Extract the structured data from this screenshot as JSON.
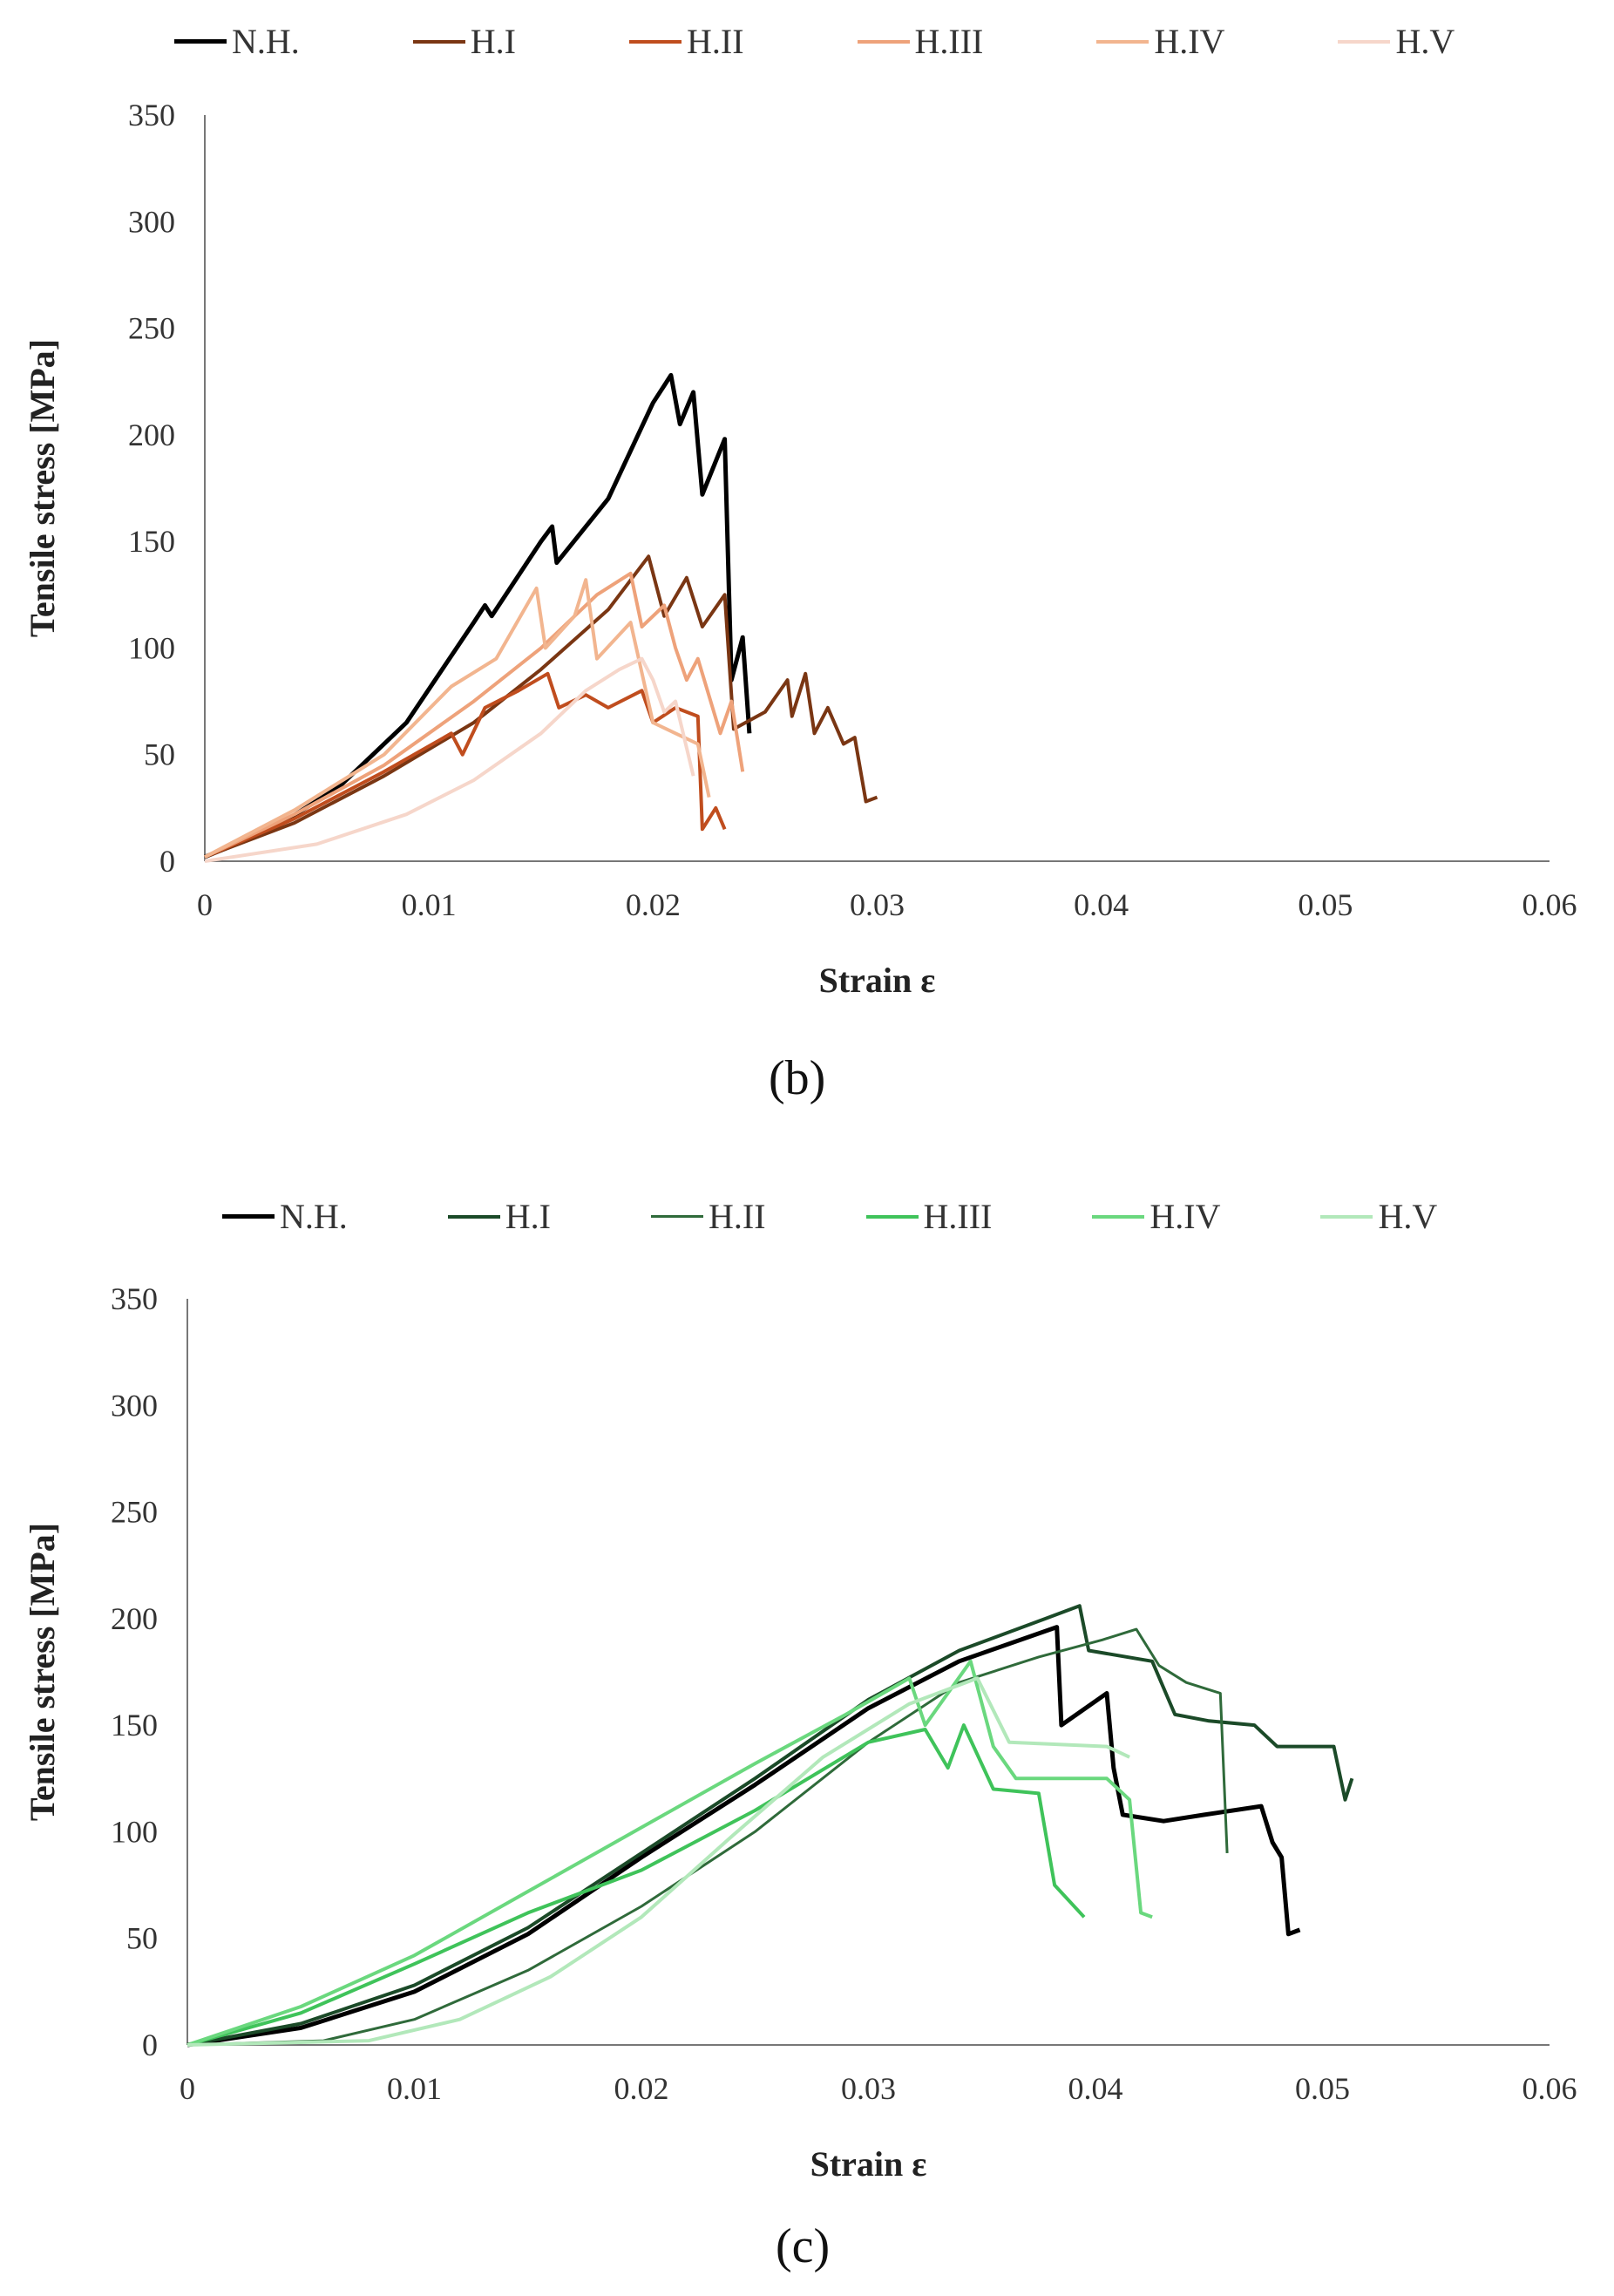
{
  "chart_data": [
    {
      "type": "line",
      "panel_label": "(b)",
      "xlabel": "Strain ε",
      "ylabel": "Tensile stress [MPa]",
      "xlim": [
        0,
        0.06
      ],
      "ylim": [
        0,
        350
      ],
      "x_ticks": [
        "0",
        "0.01",
        "0.02",
        "0.03",
        "0.04",
        "0.05",
        "0.06"
      ],
      "y_ticks": [
        "0",
        "50",
        "100",
        "150",
        "200",
        "250",
        "300",
        "350"
      ],
      "legend_position": "top",
      "series": [
        {
          "name": "N.H.",
          "color": "#000000",
          "width": 5,
          "points": [
            [
              0,
              2
            ],
            [
              0.003,
              15
            ],
            [
              0.006,
              35
            ],
            [
              0.009,
              65
            ],
            [
              0.012,
              112
            ],
            [
              0.0125,
              120
            ],
            [
              0.0128,
              115
            ],
            [
              0.015,
              150
            ],
            [
              0.0155,
              157
            ],
            [
              0.0157,
              140
            ],
            [
              0.018,
              170
            ],
            [
              0.02,
              215
            ],
            [
              0.0208,
              228
            ],
            [
              0.0212,
              205
            ],
            [
              0.0218,
              220
            ],
            [
              0.0222,
              172
            ],
            [
              0.0232,
              198
            ],
            [
              0.0235,
              85
            ],
            [
              0.024,
              105
            ],
            [
              0.0243,
              60
            ]
          ]
        },
        {
          "name": "H.I",
          "color": "#7a3613",
          "width": 4,
          "points": [
            [
              0,
              2
            ],
            [
              0.004,
              18
            ],
            [
              0.008,
              40
            ],
            [
              0.012,
              65
            ],
            [
              0.015,
              90
            ],
            [
              0.018,
              118
            ],
            [
              0.0198,
              143
            ],
            [
              0.0205,
              115
            ],
            [
              0.0215,
              133
            ],
            [
              0.0222,
              110
            ],
            [
              0.0232,
              125
            ],
            [
              0.0236,
              62
            ],
            [
              0.025,
              70
            ],
            [
              0.026,
              85
            ],
            [
              0.0262,
              68
            ],
            [
              0.0268,
              88
            ],
            [
              0.0272,
              60
            ],
            [
              0.0278,
              72
            ],
            [
              0.0285,
              55
            ],
            [
              0.029,
              58
            ],
            [
              0.0295,
              28
            ],
            [
              0.03,
              30
            ]
          ]
        },
        {
          "name": "H.II",
          "color": "#c04d1e",
          "width": 4,
          "points": [
            [
              0,
              2
            ],
            [
              0.004,
              20
            ],
            [
              0.008,
              42
            ],
            [
              0.011,
              60
            ],
            [
              0.0115,
              50
            ],
            [
              0.0125,
              72
            ],
            [
              0.014,
              80
            ],
            [
              0.0153,
              88
            ],
            [
              0.0158,
              72
            ],
            [
              0.017,
              78
            ],
            [
              0.018,
              72
            ],
            [
              0.0195,
              80
            ],
            [
              0.02,
              65
            ],
            [
              0.021,
              72
            ],
            [
              0.022,
              68
            ],
            [
              0.0222,
              15
            ],
            [
              0.0228,
              25
            ],
            [
              0.0232,
              15
            ]
          ]
        },
        {
          "name": "H.III",
          "color": "#eea27a",
          "width": 4,
          "points": [
            [
              0,
              2
            ],
            [
              0.004,
              22
            ],
            [
              0.008,
              45
            ],
            [
              0.012,
              75
            ],
            [
              0.015,
              100
            ],
            [
              0.0175,
              125
            ],
            [
              0.019,
              135
            ],
            [
              0.0195,
              110
            ],
            [
              0.0205,
              120
            ],
            [
              0.021,
              100
            ],
            [
              0.0215,
              85
            ],
            [
              0.022,
              95
            ],
            [
              0.023,
              60
            ],
            [
              0.0235,
              75
            ],
            [
              0.024,
              42
            ]
          ]
        },
        {
          "name": "H.IV",
          "color": "#f2b58f",
          "width": 4,
          "points": [
            [
              0,
              2
            ],
            [
              0.004,
              24
            ],
            [
              0.008,
              50
            ],
            [
              0.011,
              82
            ],
            [
              0.013,
              95
            ],
            [
              0.0148,
              128
            ],
            [
              0.0152,
              100
            ],
            [
              0.0165,
              115
            ],
            [
              0.017,
              132
            ],
            [
              0.0175,
              95
            ],
            [
              0.019,
              112
            ],
            [
              0.02,
              65
            ],
            [
              0.021,
              60
            ],
            [
              0.022,
              55
            ],
            [
              0.0225,
              30
            ]
          ]
        },
        {
          "name": "H.V",
          "color": "#f6d6ca",
          "width": 4,
          "points": [
            [
              0,
              0
            ],
            [
              0.005,
              8
            ],
            [
              0.009,
              22
            ],
            [
              0.012,
              38
            ],
            [
              0.015,
              60
            ],
            [
              0.017,
              80
            ],
            [
              0.0185,
              90
            ],
            [
              0.0195,
              95
            ],
            [
              0.02,
              85
            ],
            [
              0.0205,
              70
            ],
            [
              0.021,
              75
            ],
            [
              0.0218,
              40
            ]
          ]
        }
      ]
    },
    {
      "type": "line",
      "panel_label": "(c)",
      "xlabel": "Strain ε",
      "ylabel": "Tensile stress [MPa]",
      "xlim": [
        0,
        0.06
      ],
      "ylim": [
        0,
        350
      ],
      "x_ticks": [
        "0",
        "0.01",
        "0.02",
        "0.03",
        "0.04",
        "0.05",
        "0.06"
      ],
      "y_ticks": [
        "0",
        "50",
        "100",
        "150",
        "200",
        "250",
        "300",
        "350"
      ],
      "legend_position": "top",
      "series": [
        {
          "name": "N.H.",
          "color": "#000000",
          "width": 5,
          "points": [
            [
              0,
              0
            ],
            [
              0.005,
              8
            ],
            [
              0.01,
              25
            ],
            [
              0.015,
              52
            ],
            [
              0.02,
              88
            ],
            [
              0.025,
              122
            ],
            [
              0.03,
              158
            ],
            [
              0.034,
              180
            ],
            [
              0.0383,
              196
            ],
            [
              0.0385,
              150
            ],
            [
              0.0405,
              165
            ],
            [
              0.0408,
              130
            ],
            [
              0.0412,
              108
            ],
            [
              0.043,
              105
            ],
            [
              0.0448,
              108
            ],
            [
              0.0473,
              112
            ],
            [
              0.0478,
              95
            ],
            [
              0.0482,
              88
            ],
            [
              0.0485,
              52
            ],
            [
              0.049,
              54
            ]
          ]
        },
        {
          "name": "H.I",
          "color": "#1b4a28",
          "width": 4,
          "points": [
            [
              0,
              0
            ],
            [
              0.005,
              10
            ],
            [
              0.01,
              28
            ],
            [
              0.015,
              55
            ],
            [
              0.02,
              90
            ],
            [
              0.025,
              125
            ],
            [
              0.03,
              162
            ],
            [
              0.034,
              185
            ],
            [
              0.0378,
              200
            ],
            [
              0.0393,
              206
            ],
            [
              0.0397,
              185
            ],
            [
              0.0425,
              180
            ],
            [
              0.0435,
              155
            ],
            [
              0.045,
              152
            ],
            [
              0.047,
              150
            ],
            [
              0.048,
              140
            ],
            [
              0.0505,
              140
            ],
            [
              0.051,
              115
            ],
            [
              0.0513,
              125
            ]
          ]
        },
        {
          "name": "H.II",
          "color": "#2f6a3a",
          "width": 3,
          "points": [
            [
              0,
              0
            ],
            [
              0.006,
              2
            ],
            [
              0.01,
              12
            ],
            [
              0.015,
              35
            ],
            [
              0.02,
              65
            ],
            [
              0.025,
              100
            ],
            [
              0.03,
              142
            ],
            [
              0.034,
              170
            ],
            [
              0.0375,
              182
            ],
            [
              0.0403,
              190
            ],
            [
              0.0418,
              195
            ],
            [
              0.0428,
              178
            ],
            [
              0.044,
              170
            ],
            [
              0.0455,
              165
            ],
            [
              0.0458,
              90
            ]
          ]
        },
        {
          "name": "H.III",
          "color": "#3fc35a",
          "width": 4,
          "points": [
            [
              0,
              0
            ],
            [
              0.005,
              15
            ],
            [
              0.01,
              38
            ],
            [
              0.015,
              62
            ],
            [
              0.02,
              82
            ],
            [
              0.025,
              110
            ],
            [
              0.03,
              142
            ],
            [
              0.0325,
              148
            ],
            [
              0.0335,
              130
            ],
            [
              0.0342,
              150
            ],
            [
              0.0355,
              120
            ],
            [
              0.0375,
              118
            ],
            [
              0.0382,
              75
            ],
            [
              0.0395,
              60
            ]
          ]
        },
        {
          "name": "H.IV",
          "color": "#6ad87e",
          "width": 4,
          "points": [
            [
              0,
              0
            ],
            [
              0.005,
              18
            ],
            [
              0.01,
              42
            ],
            [
              0.015,
              72
            ],
            [
              0.02,
              102
            ],
            [
              0.025,
              132
            ],
            [
              0.029,
              155
            ],
            [
              0.0318,
              172
            ],
            [
              0.0325,
              150
            ],
            [
              0.0345,
              180
            ],
            [
              0.0355,
              140
            ],
            [
              0.0365,
              125
            ],
            [
              0.0405,
              125
            ],
            [
              0.0415,
              115
            ],
            [
              0.042,
              62
            ],
            [
              0.0425,
              60
            ]
          ]
        },
        {
          "name": "H.V",
          "color": "#b2e8ba",
          "width": 4,
          "points": [
            [
              0,
              0
            ],
            [
              0.008,
              2
            ],
            [
              0.012,
              12
            ],
            [
              0.016,
              32
            ],
            [
              0.02,
              60
            ],
            [
              0.024,
              98
            ],
            [
              0.028,
              135
            ],
            [
              0.0318,
              160
            ],
            [
              0.0348,
              172
            ],
            [
              0.0362,
              142
            ],
            [
              0.0405,
              140
            ],
            [
              0.0415,
              135
            ]
          ]
        }
      ]
    }
  ]
}
